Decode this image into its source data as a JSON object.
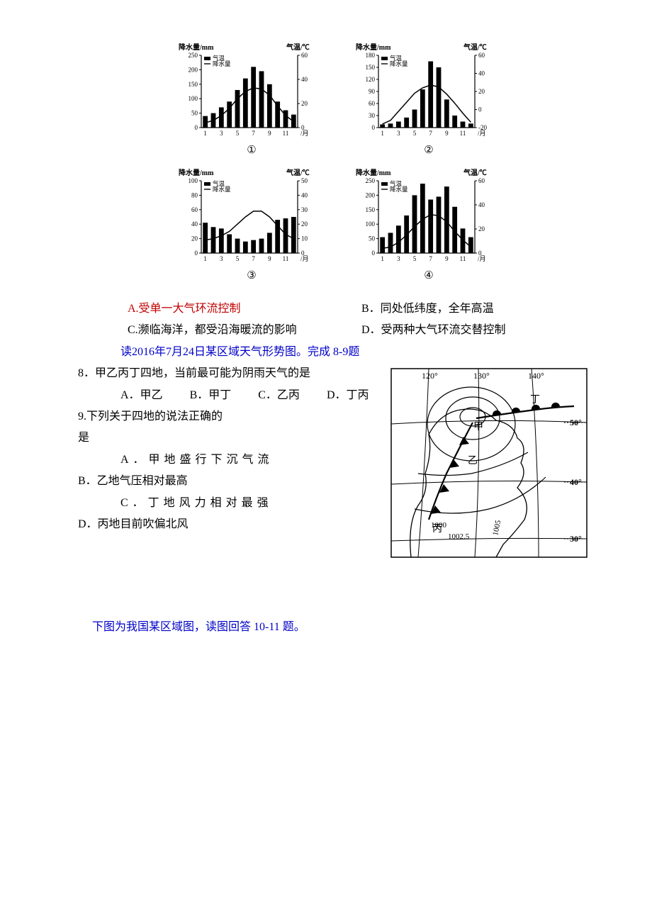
{
  "charts": {
    "common": {
      "left_axis_label": "降水量/mm",
      "right_axis_label": "气温/℃",
      "x_axis_label_suffix": "/月",
      "x_ticks": [
        "1",
        "3",
        "5",
        "7",
        "9",
        "11"
      ],
      "legend_temp": "气温",
      "legend_precip": "降水量",
      "bar_color": "#000000",
      "line_color": "#000000",
      "axis_color": "#000000",
      "fontsize_axis": 9,
      "fontsize_label": 10,
      "bar_width": 0.6
    },
    "panels": [
      {
        "id": "①",
        "left_ticks": [
          0,
          50,
          100,
          150,
          200,
          250
        ],
        "right_ticks": [
          0,
          20,
          40,
          60
        ],
        "precip_mm": [
          40,
          50,
          70,
          90,
          130,
          170,
          210,
          195,
          150,
          90,
          60,
          45
        ],
        "temp_c": [
          4,
          6,
          10,
          16,
          24,
          30,
          33,
          32,
          27,
          18,
          10,
          5
        ]
      },
      {
        "id": "②",
        "left_ticks": [
          0,
          30,
          60,
          90,
          120,
          150,
          180
        ],
        "right_ticks": [
          -20,
          0,
          20,
          40,
          60
        ],
        "precip_mm": [
          8,
          10,
          15,
          25,
          45,
          95,
          165,
          150,
          70,
          30,
          15,
          10
        ],
        "temp_c": [
          -16,
          -12,
          -2,
          8,
          18,
          24,
          27,
          25,
          17,
          7,
          -4,
          -14
        ]
      },
      {
        "id": "③",
        "left_ticks": [
          0,
          20,
          40,
          60,
          80,
          100
        ],
        "right_ticks": [
          0,
          10,
          20,
          30,
          40,
          50
        ],
        "precip_mm": [
          42,
          36,
          34,
          26,
          20,
          16,
          18,
          20,
          28,
          46,
          48,
          50
        ],
        "temp_c": [
          9,
          10,
          12,
          15,
          20,
          25,
          29,
          29,
          25,
          19,
          13,
          10
        ]
      },
      {
        "id": "④",
        "left_ticks": [
          0,
          50,
          100,
          150,
          200,
          250
        ],
        "right_ticks": [
          0,
          20,
          40,
          60
        ],
        "precip_mm": [
          55,
          70,
          95,
          130,
          200,
          240,
          185,
          195,
          230,
          160,
          85,
          55
        ],
        "temp_c": [
          4,
          5,
          9,
          15,
          22,
          28,
          32,
          31,
          26,
          18,
          11,
          5
        ]
      }
    ]
  },
  "options_block1": {
    "A": "A.受单一大气环流控制",
    "B": "B．同处低纬度，全年高温",
    "C": "C.濒临海洋，都受沿海暖流的影响",
    "D": "D．受两种大气环流交替控制"
  },
  "intro1": "读2016年7月24日某区域天气形势图。完成 8-9题",
  "q8": {
    "stem": "8．甲乙丙丁四地，当前最可能为阴雨天气的是",
    "opts": {
      "A": "A．甲乙",
      "B": "B．甲丁",
      "C": "C．乙丙",
      "D": "D．丁丙"
    }
  },
  "q9": {
    "stem_line1": "9.下列关于四地的说法正确的",
    "stem_line2": "是",
    "A": "A．甲地盛行下沉气流",
    "B": "B．乙地气压相对最高",
    "C": "C．丁地风力相对最强",
    "D": "D．丙地目前吹偏北风"
  },
  "intro2": "下图为我国某区域图，读图回答 10-11 题。",
  "map": {
    "lon_ticks": [
      "120°",
      "130°",
      "140°"
    ],
    "lat_ticks": [
      "50°",
      "40°",
      "30°"
    ],
    "isobar_labels": [
      "1000",
      "1002.5",
      "1005"
    ],
    "place_labels": {
      "jia": "甲",
      "yi": "乙",
      "bing": "丙",
      "ding": "丁"
    },
    "line_color": "#000000",
    "fill_color": "#ffffff",
    "frontline_color": "#000000",
    "fontsize": 11
  }
}
